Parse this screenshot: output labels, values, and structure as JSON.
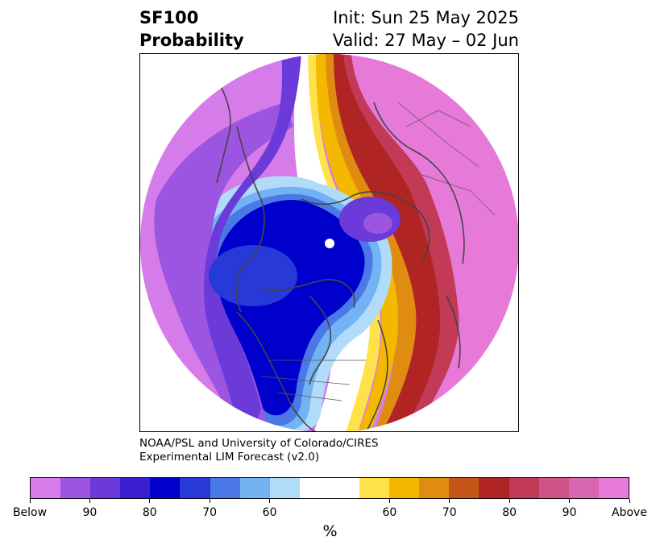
{
  "header": {
    "variable_line1": "SF100",
    "variable_line2": "Probability",
    "init_text": "Init: Sun 25 May 2025",
    "valid_text": "Valid: 27 May – 02 Jun"
  },
  "credit": {
    "line1": "NOAA/PSL and University of Colorado/CIRES",
    "line2": "Experimental LIM Forecast (v2.0)"
  },
  "colorbar": {
    "unit_label": "%",
    "colors": [
      "#d57bea",
      "#9c55e0",
      "#6b3ad8",
      "#3a1fd0",
      "#0000cc",
      "#2739d6",
      "#4a78e6",
      "#73b2f3",
      "#b0dcfa",
      "#ffffff",
      "#ffffff",
      "#ffe24a",
      "#f5b800",
      "#e08c10",
      "#c65518",
      "#b02424",
      "#c33a57",
      "#d05287",
      "#d866b0",
      "#e77ad9"
    ],
    "tick_labels": [
      "Below",
      "90",
      "80",
      "70",
      "60",
      "60",
      "70",
      "80",
      "90",
      "Above"
    ]
  },
  "map": {
    "projection": "north-polar-stereographic",
    "colors": {
      "below_extreme": "#d57bea",
      "below_deep": "#0000cc",
      "neutral": "#ffffff",
      "above_yellow": "#ffe24a",
      "above_red": "#b02424",
      "above_extreme": "#e77ad9",
      "coastline": "#444444"
    }
  }
}
